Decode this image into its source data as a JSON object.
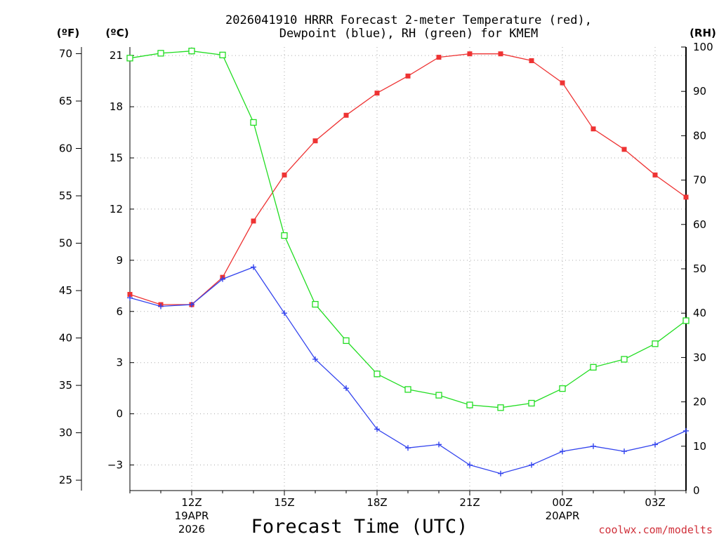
{
  "chart_data": {
    "type": "line",
    "title_line1": "2026041910 HRRR Forecast 2-meter Temperature (red),",
    "title_line2": "Dewpoint (blue), RH (green) for KMEM",
    "xlabel": "Forecast Time (UTC)",
    "credit": "coolwx.com/modelts",
    "units": {
      "fahrenheit": "(ºF)",
      "celsius": "(ºC)",
      "rh": "(RH)"
    },
    "x_hours": [
      10,
      11,
      12,
      13,
      14,
      15,
      16,
      17,
      18,
      19,
      20,
      21,
      22,
      23,
      24,
      25,
      26,
      27,
      28
    ],
    "xlim": [
      10,
      28
    ],
    "x_ticks": [
      {
        "hour": 12,
        "label": "12Z",
        "sub1": "19APR",
        "sub2": "2026"
      },
      {
        "hour": 15,
        "label": "15Z",
        "sub1": "",
        "sub2": ""
      },
      {
        "hour": 18,
        "label": "18Z",
        "sub1": "",
        "sub2": ""
      },
      {
        "hour": 21,
        "label": "21Z",
        "sub1": "",
        "sub2": ""
      },
      {
        "hour": 24,
        "label": "00Z",
        "sub1": "20APR",
        "sub2": ""
      },
      {
        "hour": 27,
        "label": "03Z",
        "sub1": "",
        "sub2": ""
      }
    ],
    "celsius_axis": {
      "ylim": [
        -4.5,
        21.5
      ],
      "ticks": [
        -3,
        0,
        3,
        6,
        9,
        12,
        15,
        18,
        21
      ],
      "tick_labels": [
        "−3",
        "0",
        "3",
        "6",
        "9",
        "12",
        "15",
        "18",
        "21"
      ]
    },
    "fahrenheit_axis": {
      "ticks": [
        25,
        30,
        35,
        40,
        45,
        50,
        55,
        60,
        65,
        70
      ],
      "tick_labels": [
        "25",
        "30",
        "35",
        "40",
        "45",
        "50",
        "55",
        "60",
        "65",
        "70"
      ]
    },
    "rh_axis": {
      "ylim": [
        0,
        100
      ],
      "ticks": [
        0,
        10,
        20,
        30,
        40,
        50,
        60,
        70,
        80,
        90,
        100
      ],
      "tick_labels": [
        "0",
        "10",
        "20",
        "30",
        "40",
        "50",
        "60",
        "70",
        "80",
        "90",
        "100"
      ]
    },
    "series": [
      {
        "name": "Temperature",
        "axis": "celsius",
        "color": "#ee3333",
        "marker": "filled-square",
        "values": [
          7.0,
          6.4,
          6.4,
          8.0,
          11.3,
          14.0,
          16.0,
          17.5,
          18.8,
          19.8,
          20.9,
          21.1,
          21.1,
          20.7,
          19.4,
          16.7,
          15.5,
          14.0,
          12.7
        ]
      },
      {
        "name": "Dewpoint",
        "axis": "celsius",
        "color": "#3344ee",
        "marker": "plus",
        "values": [
          6.8,
          6.3,
          6.4,
          7.9,
          8.6,
          5.9,
          3.2,
          1.5,
          -0.9,
          -2.0,
          -1.8,
          -3.0,
          -3.5,
          -3.0,
          -2.2,
          -1.9,
          -2.2,
          -1.8,
          -1.0
        ]
      },
      {
        "name": "Relative Humidity",
        "axis": "rh",
        "color": "#22dd22",
        "marker": "open-square",
        "values": [
          97.5,
          98.6,
          99.1,
          98.2,
          83.0,
          57.5,
          42.0,
          33.8,
          26.3,
          22.8,
          21.5,
          19.3,
          18.7,
          19.7,
          23.0,
          27.8,
          29.6,
          33.1,
          38.3
        ]
      }
    ]
  }
}
